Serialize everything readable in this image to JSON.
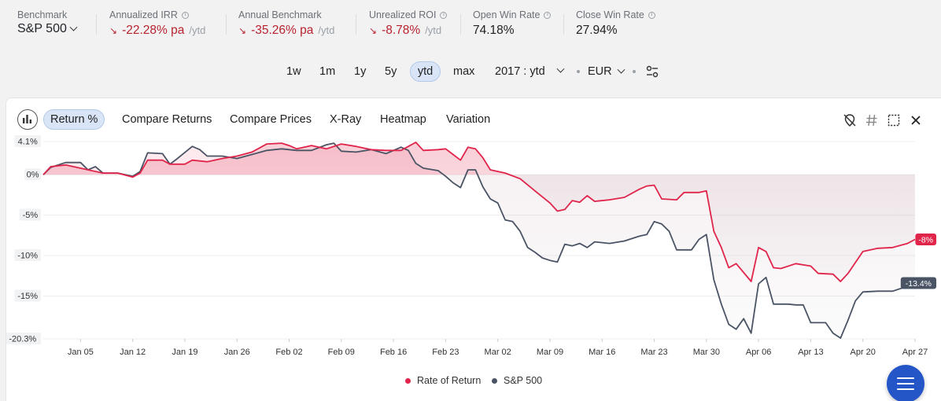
{
  "metrics": {
    "benchmark": {
      "label": "Benchmark",
      "value": "S&P 500"
    },
    "irr": {
      "label": "Annualized IRR",
      "value": "-22.28% pa",
      "suffix": "/ytd"
    },
    "annual_benchmark": {
      "label": "Annual Benchmark",
      "value": "-35.26% pa",
      "suffix": "/ytd"
    },
    "roi": {
      "label": "Unrealized ROI",
      "value": "-8.78%",
      "suffix": "/ytd"
    },
    "open_win": {
      "label": "Open Win Rate",
      "value": "74.18%"
    },
    "close_win": {
      "label": "Close Win Rate",
      "value": "27.94%"
    }
  },
  "range": {
    "buttons": [
      "1w",
      "1m",
      "1y",
      "5y",
      "ytd",
      "max"
    ],
    "active": "ytd",
    "period": "2017 : ytd",
    "currency": "EUR"
  },
  "tabs": {
    "items": [
      "Return %",
      "Compare Returns",
      "Compare Prices",
      "X-Ray",
      "Heatmap",
      "Variation"
    ],
    "active": "Return %"
  },
  "legend": {
    "rate": "Rate of Return",
    "bench": "S&P 500"
  },
  "colors": {
    "rate": "#e0244a",
    "bench": "#4a5465",
    "accent": "#2456c7",
    "negative": "#b8232f"
  },
  "chart_data": {
    "type": "line",
    "x_ticks": [
      "Jan 05",
      "Jan 12",
      "Jan 19",
      "Jan 26",
      "Feb 02",
      "Feb 09",
      "Feb 16",
      "Feb 23",
      "Mar 02",
      "Mar 09",
      "Mar 16",
      "Mar 23",
      "Mar 30",
      "Apr 06",
      "Apr 13",
      "Apr 20",
      "Apr 27"
    ],
    "y_ticks": [
      "4.1%",
      "0%",
      "-5%",
      "-10%",
      "-15%",
      "-20.3%"
    ],
    "ylim": [
      -20.3,
      4.1
    ],
    "grid": true,
    "legend_position": "bottom",
    "series": [
      {
        "name": "Rate of Return",
        "end_label": "-8%",
        "points": [
          [
            0,
            0
          ],
          [
            1,
            1
          ],
          [
            3,
            1.2
          ],
          [
            6,
            0.6
          ],
          [
            8,
            0.2
          ],
          [
            10,
            0.2
          ],
          [
            12,
            -0.3
          ],
          [
            13,
            0.2
          ],
          [
            14,
            1.8
          ],
          [
            16,
            1.8
          ],
          [
            17,
            1.3
          ],
          [
            19,
            1.3
          ],
          [
            20,
            1.8
          ],
          [
            22,
            1.6
          ],
          [
            24,
            2
          ],
          [
            26,
            2.3
          ],
          [
            28,
            2.8
          ],
          [
            30,
            3.8
          ],
          [
            32,
            3.9
          ],
          [
            33,
            3.6
          ],
          [
            34,
            3.2
          ],
          [
            36,
            3.6
          ],
          [
            38,
            3.2
          ],
          [
            40,
            3.8
          ],
          [
            42,
            3.5
          ],
          [
            44,
            3.1
          ],
          [
            46,
            3
          ],
          [
            48,
            3
          ],
          [
            49,
            3.5
          ],
          [
            50,
            4
          ],
          [
            51,
            3
          ],
          [
            53,
            3.1
          ],
          [
            54,
            3.2
          ],
          [
            55,
            2.5
          ],
          [
            56,
            1.8
          ],
          [
            57,
            3.4
          ],
          [
            58,
            3.2
          ],
          [
            59,
            2.1
          ],
          [
            60,
            0.6
          ],
          [
            62,
            0.2
          ],
          [
            64,
            -0.5
          ],
          [
            66,
            -2
          ],
          [
            68,
            -3.5
          ],
          [
            69,
            -4.5
          ],
          [
            70,
            -4.3
          ],
          [
            71,
            -3.2
          ],
          [
            72,
            -3.4
          ],
          [
            73,
            -2.6
          ],
          [
            74,
            -3.3
          ],
          [
            76,
            -3.1
          ],
          [
            78,
            -2.8
          ],
          [
            80,
            -1.8
          ],
          [
            81,
            -1.4
          ],
          [
            82,
            -1.3
          ],
          [
            83,
            -3
          ],
          [
            85,
            -3.1
          ],
          [
            86,
            -2.2
          ],
          [
            88,
            -2.2
          ],
          [
            89,
            -2
          ],
          [
            90,
            -7
          ],
          [
            91,
            -9
          ],
          [
            92,
            -11.5
          ],
          [
            93,
            -11
          ],
          [
            95,
            -13.2
          ],
          [
            96,
            -9
          ],
          [
            97,
            -9.5
          ],
          [
            98,
            -11.5
          ],
          [
            99,
            -11.6
          ],
          [
            101,
            -11
          ],
          [
            103,
            -11.3
          ],
          [
            104,
            -12.2
          ],
          [
            106,
            -12.3
          ],
          [
            107,
            -13.2
          ],
          [
            108,
            -12.2
          ],
          [
            110,
            -9.5
          ],
          [
            112,
            -9.1
          ],
          [
            114,
            -9
          ],
          [
            116,
            -8.5
          ],
          [
            117,
            -8
          ]
        ]
      },
      {
        "name": "S&P 500",
        "end_label": "-13.4%",
        "points": [
          [
            0,
            0
          ],
          [
            1,
            0.9
          ],
          [
            3,
            1.5
          ],
          [
            5,
            1.5
          ],
          [
            6,
            0.6
          ],
          [
            7,
            1
          ],
          [
            8,
            0.2
          ],
          [
            10,
            0.2
          ],
          [
            12,
            -0.2
          ],
          [
            13,
            0.4
          ],
          [
            14,
            2.7
          ],
          [
            16,
            2.6
          ],
          [
            17,
            1.3
          ],
          [
            18,
            2
          ],
          [
            20,
            3.5
          ],
          [
            21,
            3.1
          ],
          [
            22,
            2.3
          ],
          [
            24,
            2.3
          ],
          [
            26,
            2
          ],
          [
            28,
            2.5
          ],
          [
            30,
            3
          ],
          [
            32,
            3.2
          ],
          [
            33,
            3.1
          ],
          [
            34,
            3
          ],
          [
            36,
            3
          ],
          [
            38,
            3.7
          ],
          [
            39,
            3.9
          ],
          [
            40,
            2.9
          ],
          [
            42,
            2.8
          ],
          [
            44,
            3.1
          ],
          [
            46,
            2.6
          ],
          [
            48,
            3.4
          ],
          [
            49,
            3
          ],
          [
            50,
            1.4
          ],
          [
            51,
            0.8
          ],
          [
            53,
            0.5
          ],
          [
            54,
            -0.2
          ],
          [
            55,
            -1
          ],
          [
            56,
            -1.6
          ],
          [
            57,
            0.6
          ],
          [
            58,
            0.6
          ],
          [
            59,
            -1.5
          ],
          [
            60,
            -3
          ],
          [
            61,
            -3.5
          ],
          [
            62,
            -5.6
          ],
          [
            63,
            -5.8
          ],
          [
            64,
            -7
          ],
          [
            65,
            -9
          ],
          [
            66,
            -9.6
          ],
          [
            67,
            -10.3
          ],
          [
            68,
            -10.6
          ],
          [
            69,
            -10.8
          ],
          [
            70,
            -8.6
          ],
          [
            71,
            -8.8
          ],
          [
            72,
            -8.5
          ],
          [
            73,
            -9
          ],
          [
            74,
            -8.3
          ],
          [
            76,
            -8.5
          ],
          [
            78,
            -8.2
          ],
          [
            80,
            -7.6
          ],
          [
            81,
            -7.4
          ],
          [
            82,
            -5.8
          ],
          [
            83,
            -6.1
          ],
          [
            84,
            -7
          ],
          [
            85,
            -9.3
          ],
          [
            87,
            -9.3
          ],
          [
            88,
            -8
          ],
          [
            89,
            -7.4
          ],
          [
            90,
            -13
          ],
          [
            91,
            -16
          ],
          [
            92,
            -18.5
          ],
          [
            93,
            -19.1
          ],
          [
            94,
            -17.8
          ],
          [
            95,
            -19.6
          ],
          [
            96,
            -13.5
          ],
          [
            97,
            -12.7
          ],
          [
            98,
            -16
          ],
          [
            100,
            -16
          ],
          [
            101,
            -16.1
          ],
          [
            102,
            -16.1
          ],
          [
            103,
            -18.3
          ],
          [
            105,
            -18.3
          ],
          [
            106,
            -19.6
          ],
          [
            107,
            -20.2
          ],
          [
            108,
            -18
          ],
          [
            109,
            -15.6
          ],
          [
            110,
            -14.5
          ],
          [
            112,
            -14.4
          ],
          [
            114,
            -14.4
          ],
          [
            116,
            -13.8
          ],
          [
            117,
            -13.4
          ]
        ]
      }
    ]
  }
}
